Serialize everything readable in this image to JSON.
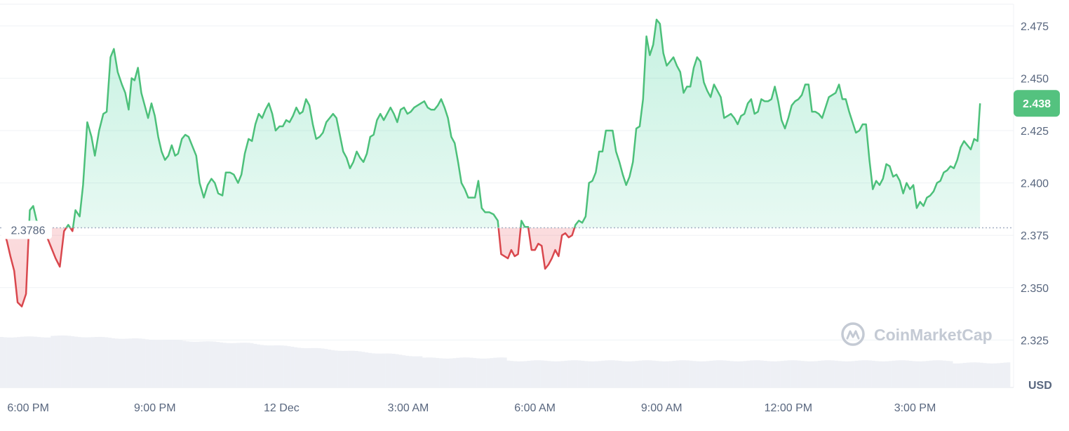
{
  "chart_data": {
    "type": "area",
    "currency_label": "USD",
    "watermark": "CoinMarketCap",
    "baseline_value": 2.3786,
    "baseline_label": "2.3786",
    "current_value": 2.438,
    "current_label": "2.438",
    "y_range": [
      2.3,
      2.485
    ],
    "y_ticks": [
      {
        "value": 2.325,
        "label": "2.325"
      },
      {
        "value": 2.35,
        "label": "2.350"
      },
      {
        "value": 2.375,
        "label": "2.375"
      },
      {
        "value": 2.4,
        "label": "2.400"
      },
      {
        "value": 2.425,
        "label": "2.425"
      },
      {
        "value": 2.45,
        "label": "2.450"
      },
      {
        "value": 2.475,
        "label": "2.475"
      }
    ],
    "x_range_hours": [
      0,
      24
    ],
    "x_ticks": [
      {
        "label": "6:00 PM"
      },
      {
        "label": "9:00 PM"
      },
      {
        "label": "12 Dec"
      },
      {
        "label": "3:00 AM"
      },
      {
        "label": "6:00 AM"
      },
      {
        "label": "9:00 AM"
      },
      {
        "label": "12:00 PM"
      },
      {
        "label": "3:00 PM"
      }
    ],
    "grid": true,
    "colors": {
      "up": "#16c784",
      "up_line": "#4cc07a",
      "down": "#ea3943",
      "down_line": "#d9474d",
      "volume": "#eef0f5",
      "grid": "#eff2f5",
      "baseline": "#a6b0c3"
    },
    "series": [
      {
        "values": [
          [
            0.0,
            2.3786
          ],
          [
            0.1,
            2.372
          ],
          [
            0.18,
            2.365
          ],
          [
            0.27,
            2.358
          ],
          [
            0.35,
            2.343
          ],
          [
            0.45,
            2.341
          ],
          [
            0.55,
            2.347
          ],
          [
            0.6,
            2.37
          ],
          [
            0.64,
            2.387
          ],
          [
            0.72,
            2.389
          ],
          [
            0.8,
            2.382
          ],
          [
            0.9,
            2.38
          ],
          [
            1.05,
            2.374
          ],
          [
            1.15,
            2.369
          ],
          [
            1.25,
            2.364
          ],
          [
            1.35,
            2.36
          ],
          [
            1.45,
            2.377
          ],
          [
            1.55,
            2.38
          ],
          [
            1.65,
            2.377
          ],
          [
            1.72,
            2.387
          ],
          [
            1.82,
            2.384
          ],
          [
            1.9,
            2.399
          ],
          [
            2.0,
            2.429
          ],
          [
            2.1,
            2.422
          ],
          [
            2.18,
            2.413
          ],
          [
            2.28,
            2.425
          ],
          [
            2.38,
            2.433
          ],
          [
            2.46,
            2.434
          ],
          [
            2.55,
            2.46
          ],
          [
            2.63,
            2.464
          ],
          [
            2.72,
            2.453
          ],
          [
            2.82,
            2.447
          ],
          [
            2.9,
            2.443
          ],
          [
            2.98,
            2.435
          ],
          [
            3.05,
            2.45
          ],
          [
            3.12,
            2.449
          ],
          [
            3.2,
            2.455
          ],
          [
            3.28,
            2.443
          ],
          [
            3.36,
            2.437
          ],
          [
            3.44,
            2.431
          ],
          [
            3.52,
            2.438
          ],
          [
            3.6,
            2.432
          ],
          [
            3.68,
            2.422
          ],
          [
            3.76,
            2.415
          ],
          [
            3.84,
            2.411
          ],
          [
            3.92,
            2.413
          ],
          [
            4.0,
            2.418
          ],
          [
            4.08,
            2.413
          ],
          [
            4.15,
            2.414
          ],
          [
            4.24,
            2.421
          ],
          [
            4.32,
            2.423
          ],
          [
            4.4,
            2.422
          ],
          [
            4.48,
            2.418
          ],
          [
            4.58,
            2.413
          ],
          [
            4.66,
            2.4
          ],
          [
            4.76,
            2.393
          ],
          [
            4.85,
            2.399
          ],
          [
            4.94,
            2.402
          ],
          [
            5.02,
            2.4
          ],
          [
            5.1,
            2.395
          ],
          [
            5.2,
            2.394
          ],
          [
            5.28,
            2.405
          ],
          [
            5.38,
            2.405
          ],
          [
            5.47,
            2.404
          ],
          [
            5.57,
            2.4
          ],
          [
            5.65,
            2.404
          ],
          [
            5.73,
            2.414
          ],
          [
            5.82,
            2.421
          ],
          [
            5.9,
            2.42
          ],
          [
            5.98,
            2.428
          ],
          [
            6.06,
            2.433
          ],
          [
            6.14,
            2.431
          ],
          [
            6.22,
            2.435
          ],
          [
            6.3,
            2.438
          ],
          [
            6.38,
            2.433
          ],
          [
            6.46,
            2.425
          ],
          [
            6.55,
            2.427
          ],
          [
            6.63,
            2.427
          ],
          [
            6.71,
            2.43
          ],
          [
            6.79,
            2.429
          ],
          [
            6.87,
            2.432
          ],
          [
            6.95,
            2.436
          ],
          [
            7.03,
            2.433
          ],
          [
            7.1,
            2.434
          ],
          [
            7.18,
            2.44
          ],
          [
            7.26,
            2.437
          ],
          [
            7.34,
            2.428
          ],
          [
            7.42,
            2.421
          ],
          [
            7.5,
            2.422
          ],
          [
            7.58,
            2.424
          ],
          [
            7.66,
            2.429
          ],
          [
            7.74,
            2.431
          ],
          [
            7.82,
            2.433
          ],
          [
            7.9,
            2.431
          ],
          [
            7.98,
            2.423
          ],
          [
            8.06,
            2.415
          ],
          [
            8.14,
            2.412
          ],
          [
            8.22,
            2.407
          ],
          [
            8.3,
            2.41
          ],
          [
            8.38,
            2.415
          ],
          [
            8.46,
            2.412
          ],
          [
            8.54,
            2.41
          ],
          [
            8.62,
            2.414
          ],
          [
            8.7,
            2.422
          ],
          [
            8.78,
            2.423
          ],
          [
            8.86,
            2.43
          ],
          [
            8.94,
            2.433
          ],
          [
            9.02,
            2.43
          ],
          [
            9.1,
            2.433
          ],
          [
            9.18,
            2.436
          ],
          [
            9.26,
            2.433
          ],
          [
            9.34,
            2.429
          ],
          [
            9.42,
            2.435
          ],
          [
            9.5,
            2.436
          ],
          [
            9.58,
            2.433
          ],
          [
            9.66,
            2.434
          ],
          [
            9.74,
            2.436
          ],
          [
            9.82,
            2.437
          ],
          [
            9.9,
            2.438
          ],
          [
            9.98,
            2.439
          ],
          [
            10.06,
            2.436
          ],
          [
            10.14,
            2.435
          ],
          [
            10.22,
            2.435
          ],
          [
            10.3,
            2.437
          ],
          [
            10.38,
            2.44
          ],
          [
            10.46,
            2.436
          ],
          [
            10.54,
            2.431
          ],
          [
            10.62,
            2.422
          ],
          [
            10.7,
            2.419
          ],
          [
            10.78,
            2.41
          ],
          [
            10.86,
            2.4
          ],
          [
            10.94,
            2.397
          ],
          [
            11.02,
            2.393
          ],
          [
            11.1,
            2.393
          ],
          [
            11.18,
            2.393
          ],
          [
            11.26,
            2.401
          ],
          [
            11.34,
            2.388
          ],
          [
            11.42,
            2.386
          ],
          [
            11.52,
            2.386
          ],
          [
            11.62,
            2.385
          ],
          [
            11.72,
            2.382
          ],
          [
            11.8,
            2.366
          ],
          [
            11.88,
            2.365
          ],
          [
            11.96,
            2.364
          ],
          [
            12.04,
            2.368
          ],
          [
            12.12,
            2.365
          ],
          [
            12.2,
            2.366
          ],
          [
            12.28,
            2.382
          ],
          [
            12.36,
            2.379
          ],
          [
            12.44,
            2.379
          ],
          [
            12.52,
            2.368
          ],
          [
            12.6,
            2.368
          ],
          [
            12.68,
            2.371
          ],
          [
            12.76,
            2.37
          ],
          [
            12.84,
            2.359
          ],
          [
            12.92,
            2.361
          ],
          [
            13.0,
            2.364
          ],
          [
            13.08,
            2.368
          ],
          [
            13.16,
            2.365
          ],
          [
            13.24,
            2.375
          ],
          [
            13.32,
            2.376
          ],
          [
            13.4,
            2.374
          ],
          [
            13.48,
            2.375
          ],
          [
            13.56,
            2.38
          ],
          [
            13.64,
            2.382
          ],
          [
            13.72,
            2.381
          ],
          [
            13.8,
            2.384
          ],
          [
            13.88,
            2.4
          ],
          [
            13.96,
            2.401
          ],
          [
            14.04,
            2.405
          ],
          [
            14.12,
            2.415
          ],
          [
            14.2,
            2.415
          ],
          [
            14.28,
            2.425
          ],
          [
            14.36,
            2.425
          ],
          [
            14.44,
            2.425
          ],
          [
            14.52,
            2.415
          ],
          [
            14.6,
            2.41
          ],
          [
            14.68,
            2.404
          ],
          [
            14.76,
            2.399
          ],
          [
            14.84,
            2.403
          ],
          [
            14.92,
            2.41
          ],
          [
            15.0,
            2.426
          ],
          [
            15.08,
            2.427
          ],
          [
            15.16,
            2.44
          ],
          [
            15.24,
            2.47
          ],
          [
            15.32,
            2.461
          ],
          [
            15.4,
            2.466
          ],
          [
            15.48,
            2.478
          ],
          [
            15.56,
            2.476
          ],
          [
            15.64,
            2.462
          ],
          [
            15.72,
            2.456
          ],
          [
            15.8,
            2.458
          ],
          [
            15.88,
            2.46
          ],
          [
            15.96,
            2.456
          ],
          [
            16.04,
            2.453
          ],
          [
            16.12,
            2.443
          ],
          [
            16.2,
            2.446
          ],
          [
            16.28,
            2.446
          ],
          [
            16.36,
            2.455
          ],
          [
            16.44,
            2.46
          ],
          [
            16.52,
            2.458
          ],
          [
            16.6,
            2.448
          ],
          [
            16.68,
            2.444
          ],
          [
            16.76,
            2.441
          ],
          [
            16.84,
            2.447
          ],
          [
            16.92,
            2.444
          ],
          [
            17.0,
            2.441
          ],
          [
            17.08,
            2.431
          ],
          [
            17.16,
            2.432
          ],
          [
            17.24,
            2.433
          ],
          [
            17.32,
            2.431
          ],
          [
            17.4,
            2.428
          ],
          [
            17.48,
            2.432
          ],
          [
            17.56,
            2.433
          ],
          [
            17.64,
            2.438
          ],
          [
            17.72,
            2.44
          ],
          [
            17.8,
            2.433
          ],
          [
            17.88,
            2.434
          ],
          [
            17.96,
            2.44
          ],
          [
            18.04,
            2.439
          ],
          [
            18.12,
            2.439
          ],
          [
            18.2,
            2.44
          ],
          [
            18.28,
            2.446
          ],
          [
            18.36,
            2.439
          ],
          [
            18.44,
            2.43
          ],
          [
            18.52,
            2.426
          ],
          [
            18.6,
            2.431
          ],
          [
            18.68,
            2.437
          ],
          [
            18.76,
            2.439
          ],
          [
            18.84,
            2.44
          ],
          [
            18.92,
            2.442
          ],
          [
            19.0,
            2.447
          ],
          [
            19.08,
            2.447
          ],
          [
            19.16,
            2.434
          ],
          [
            19.24,
            2.434
          ],
          [
            19.32,
            2.433
          ],
          [
            19.4,
            2.431
          ],
          [
            19.48,
            2.436
          ],
          [
            19.56,
            2.441
          ],
          [
            19.64,
            2.442
          ],
          [
            19.72,
            2.443
          ],
          [
            19.8,
            2.447
          ],
          [
            19.88,
            2.44
          ],
          [
            19.96,
            2.44
          ],
          [
            20.04,
            2.434
          ],
          [
            20.12,
            2.429
          ],
          [
            20.2,
            2.424
          ],
          [
            20.28,
            2.425
          ],
          [
            20.36,
            2.428
          ],
          [
            20.44,
            2.428
          ],
          [
            20.52,
            2.411
          ],
          [
            20.6,
            2.397
          ],
          [
            20.68,
            2.401
          ],
          [
            20.76,
            2.399
          ],
          [
            20.84,
            2.402
          ],
          [
            20.92,
            2.409
          ],
          [
            21.0,
            2.408
          ],
          [
            21.08,
            2.403
          ],
          [
            21.16,
            2.404
          ],
          [
            21.24,
            2.401
          ],
          [
            21.32,
            2.395
          ],
          [
            21.4,
            2.4
          ],
          [
            21.48,
            2.397
          ],
          [
            21.56,
            2.399
          ],
          [
            21.64,
            2.388
          ],
          [
            21.72,
            2.391
          ],
          [
            21.8,
            2.389
          ],
          [
            21.88,
            2.393
          ],
          [
            21.96,
            2.394
          ],
          [
            22.04,
            2.396
          ],
          [
            22.12,
            2.4
          ],
          [
            22.2,
            2.401
          ],
          [
            22.28,
            2.405
          ],
          [
            22.36,
            2.406
          ],
          [
            22.44,
            2.408
          ],
          [
            22.52,
            2.407
          ],
          [
            22.6,
            2.411
          ],
          [
            22.68,
            2.417
          ],
          [
            22.76,
            2.42
          ],
          [
            22.84,
            2.418
          ],
          [
            22.92,
            2.416
          ],
          [
            23.0,
            2.421
          ],
          [
            23.08,
            2.42
          ],
          [
            23.14,
            2.438
          ]
        ]
      }
    ]
  }
}
